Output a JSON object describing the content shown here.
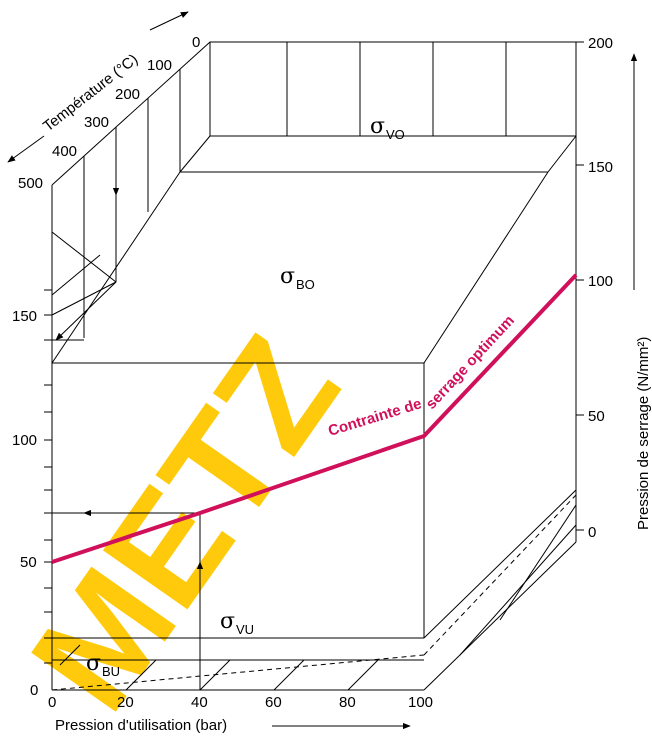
{
  "watermark": "METZ",
  "axes": {
    "x_label": "Pression d'utilisation (bar)",
    "x_ticks": [
      "0",
      "20",
      "40",
      "60",
      "80",
      "100"
    ],
    "left_ticks": [
      "0",
      "50",
      "100",
      "150"
    ],
    "temp_label": "Température (°C)",
    "temp_ticks": [
      "0",
      "100",
      "200",
      "300",
      "400",
      "500"
    ],
    "right_label": "Pression de serrage (N/mm²)",
    "right_ticks": [
      "0",
      "50",
      "100",
      "150",
      "200"
    ]
  },
  "regions": {
    "vo": {
      "sym": "σ",
      "sub": "VO"
    },
    "bo": {
      "sym": "σ",
      "sub": "BO"
    },
    "vu": {
      "sym": "σ",
      "sub": "VU"
    },
    "bu": {
      "sym": "σ",
      "sub": "BU"
    }
  },
  "curve": {
    "label_1": "Contrainte de",
    "label_2": "serrage optimum",
    "color": "#d0105a"
  }
}
